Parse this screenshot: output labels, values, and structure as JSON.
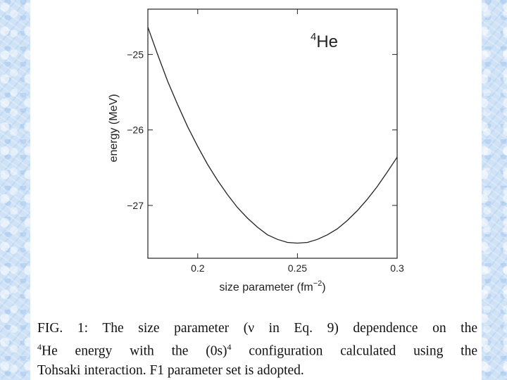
{
  "chart_data": {
    "type": "line",
    "title": "He",
    "title_superscript": "4",
    "xlabel": "size parameter (fm",
    "xlabel_superscript": "−2",
    "xlabel_close": ")",
    "ylabel": "energy (MeV)",
    "xlim": [
      0.175,
      0.3
    ],
    "ylim": [
      -27.7,
      -24.4
    ],
    "x_ticks": [
      0.2,
      0.25,
      0.3
    ],
    "x_tick_labels": [
      "0.2",
      "0.25",
      "0.3"
    ],
    "y_ticks": [
      -25,
      -26,
      -27
    ],
    "y_tick_labels": [
      "−25",
      "−26",
      "−27"
    ],
    "series": [
      {
        "name": "4He energy",
        "x": [
          0.175,
          0.18,
          0.185,
          0.19,
          0.195,
          0.2,
          0.205,
          0.21,
          0.215,
          0.22,
          0.225,
          0.23,
          0.235,
          0.24,
          0.245,
          0.25,
          0.255,
          0.26,
          0.265,
          0.27,
          0.275,
          0.28,
          0.285,
          0.29,
          0.295,
          0.3
        ],
        "y": [
          -24.64,
          -25.01,
          -25.36,
          -25.67,
          -25.96,
          -26.22,
          -26.46,
          -26.67,
          -26.86,
          -27.03,
          -27.17,
          -27.29,
          -27.39,
          -27.45,
          -27.49,
          -27.5,
          -27.49,
          -27.45,
          -27.39,
          -27.31,
          -27.2,
          -27.07,
          -26.92,
          -26.75,
          -26.56,
          -26.36
        ]
      }
    ]
  },
  "caption": {
    "line1": "FIG. 1: The size parameter (ν in Eq. 9) dependence on the",
    "line2_sup": "4",
    "line2_a": "He energy with the (0s)",
    "line2_sup2": "4",
    "line2_b": " configuration calculated using the",
    "line3": "Tohsaki interaction. F1 parameter set is adopted."
  }
}
